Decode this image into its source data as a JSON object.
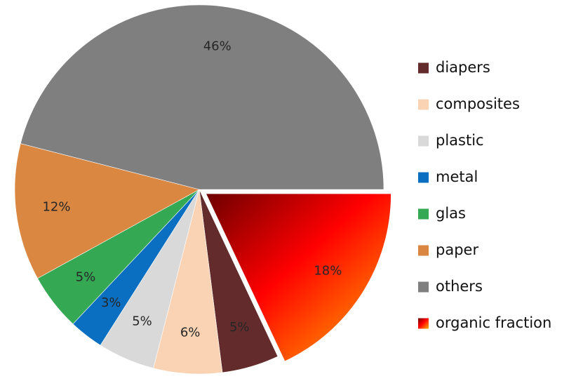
{
  "chart_data": {
    "type": "pie",
    "categories": [
      "organic fraction",
      "diapers",
      "composites",
      "plastic",
      "metal",
      "glas",
      "paper",
      "others"
    ],
    "values": [
      18,
      5,
      6,
      5,
      3,
      5,
      12,
      46
    ],
    "labels": [
      "18%",
      "5%",
      "6%",
      "5%",
      "3%",
      "5%",
      "12%",
      "46%"
    ],
    "exploded": [
      "organic fraction"
    ],
    "legend": {
      "placement": "right",
      "items": [
        {
          "label": "diapers",
          "color": "#632b2b"
        },
        {
          "label": "composites",
          "color": "#fad3b4"
        },
        {
          "label": "plastic",
          "color": "#d9d9d9"
        },
        {
          "label": "metal",
          "color": "#0b6fc1"
        },
        {
          "label": "glas",
          "color": "#35a853"
        },
        {
          "label": "paper",
          "color": "#d98741"
        },
        {
          "label": "others",
          "color": "#7f7f7f"
        },
        {
          "label": "organic fraction",
          "color": "gradient"
        }
      ]
    },
    "colors": {
      "organic fraction": [
        "#7a0000",
        "#ff0000",
        "#ffb000"
      ],
      "diapers": "#632b2b",
      "composites": "#fad3b4",
      "plastic": "#d9d9d9",
      "metal": "#0b6fc1",
      "glas": "#35a853",
      "paper": "#d98741",
      "others": "#7f7f7f"
    }
  }
}
